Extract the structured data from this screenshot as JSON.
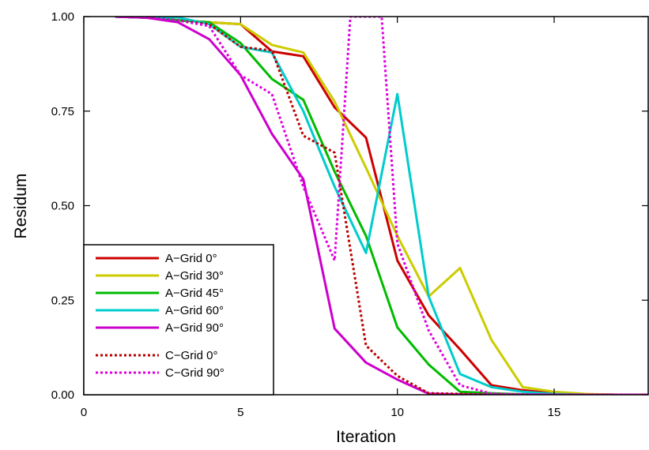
{
  "chart_data": {
    "type": "line",
    "title": "",
    "xlabel": "Iteration",
    "ylabel": "Residum",
    "xlim": [
      0,
      18
    ],
    "ylim": [
      0,
      1
    ],
    "x_ticks": [
      0,
      5,
      10,
      15
    ],
    "x_tick_labels": [
      "0",
      "5",
      "10",
      "15"
    ],
    "y_ticks": [
      0,
      0.25,
      0.5,
      0.75,
      1.0
    ],
    "y_tick_labels": [
      "0.00",
      "0.25",
      "0.50",
      "0.75",
      "1.00"
    ],
    "grid": false,
    "legend_position": "bottom-left",
    "series": [
      {
        "name": "A−Grid 0°",
        "color": "#cc0000",
        "style": "solid",
        "x": [
          1,
          2,
          3,
          4,
          5,
          6,
          7,
          8,
          9,
          10,
          11,
          12,
          13,
          14,
          15,
          16,
          17,
          18
        ],
        "y": [
          1.0,
          0.997,
          0.99,
          0.985,
          0.98,
          0.908,
          0.895,
          0.76,
          0.68,
          0.355,
          0.21,
          0.12,
          0.025,
          0.012,
          0.004,
          0.001,
          0,
          0
        ]
      },
      {
        "name": "A−Grid 30°",
        "color": "#cccc00",
        "style": "solid",
        "x": [
          1,
          2,
          3,
          4,
          5,
          6,
          7,
          8,
          9,
          10,
          11,
          12,
          13,
          14,
          15,
          16,
          17,
          18
        ],
        "y": [
          1.0,
          0.997,
          0.99,
          0.985,
          0.98,
          0.925,
          0.905,
          0.775,
          0.6,
          0.42,
          0.26,
          0.335,
          0.145,
          0.02,
          0.008,
          0.002,
          0,
          0
        ]
      },
      {
        "name": "A−Grid 45°",
        "color": "#00bb00",
        "style": "solid",
        "x": [
          1,
          2,
          3,
          4,
          5,
          6,
          7,
          8,
          9,
          10,
          11,
          12,
          13,
          14,
          15,
          16,
          17,
          18
        ],
        "y": [
          1.0,
          0.997,
          0.99,
          0.985,
          0.93,
          0.835,
          0.78,
          0.59,
          0.42,
          0.178,
          0.08,
          0.008,
          0.004,
          0.001,
          0,
          0,
          0,
          0
        ]
      },
      {
        "name": "A−Grid 60°",
        "color": "#00cccc",
        "style": "solid",
        "x": [
          1,
          2,
          3,
          4,
          5,
          6,
          7,
          8,
          9,
          10,
          11,
          12,
          13,
          14,
          15,
          16,
          17,
          18
        ],
        "y": [
          1.0,
          0.997,
          0.998,
          0.98,
          0.92,
          0.905,
          0.75,
          0.55,
          0.375,
          0.795,
          0.26,
          0.055,
          0.02,
          0.008,
          0.002,
          0,
          0,
          0
        ]
      },
      {
        "name": "A−Grid 90°",
        "color": "#cc00cc",
        "style": "solid",
        "x": [
          1,
          2,
          3,
          4,
          5,
          6,
          7,
          8,
          9,
          10,
          11,
          12,
          13,
          14,
          15,
          16,
          17,
          18
        ],
        "y": [
          1.0,
          0.997,
          0.985,
          0.94,
          0.845,
          0.69,
          0.57,
          0.175,
          0.085,
          0.04,
          0.003,
          0.001,
          0,
          0,
          0,
          0,
          0,
          0
        ]
      },
      {
        "name": "C−Grid 0°",
        "color": "#bb0000",
        "style": "dotted",
        "x": [
          1,
          2,
          3,
          4,
          5,
          6,
          7,
          8,
          9,
          10,
          11,
          12,
          13,
          14,
          15,
          16,
          17,
          18
        ],
        "y": [
          1.0,
          0.997,
          0.99,
          0.98,
          0.92,
          0.91,
          0.685,
          0.64,
          0.13,
          0.05,
          0.004,
          0.002,
          0,
          0,
          0,
          0,
          0,
          0
        ]
      },
      {
        "name": "C−Grid 90°",
        "color": "#dd00dd",
        "style": "dotted",
        "x": [
          1,
          2,
          3,
          4,
          5,
          6,
          7,
          8,
          8.5,
          9.5,
          10,
          11,
          12,
          13,
          14,
          15,
          16,
          17,
          18
        ],
        "y": [
          1.0,
          0.997,
          0.99,
          0.975,
          0.845,
          0.795,
          0.55,
          0.355,
          1.0,
          1.0,
          0.4,
          0.17,
          0.025,
          0.003,
          0.001,
          0,
          0,
          0,
          0
        ]
      }
    ]
  }
}
